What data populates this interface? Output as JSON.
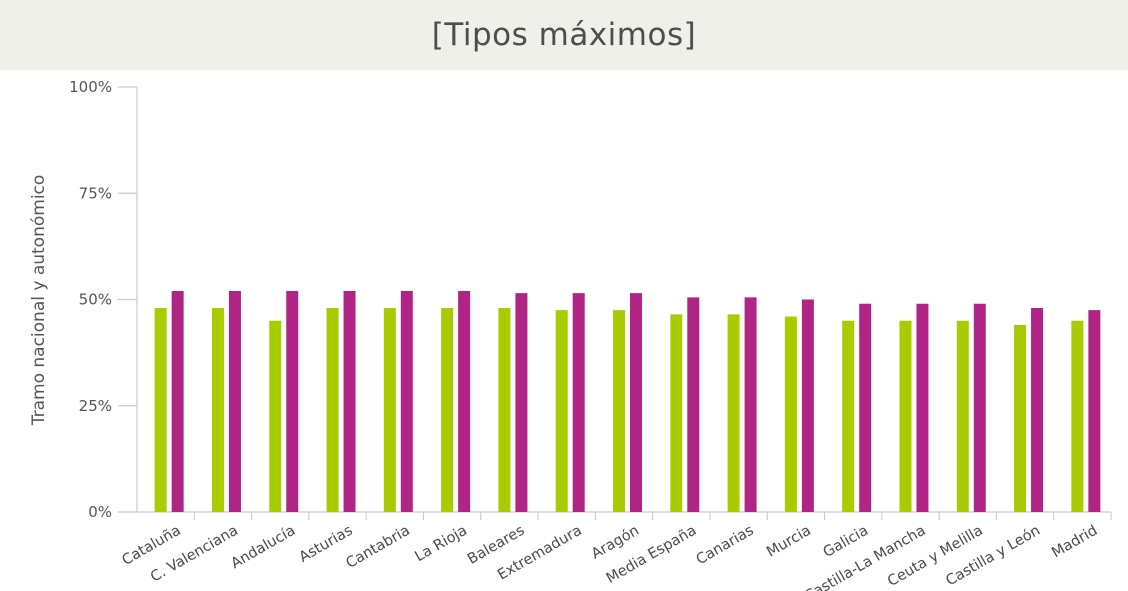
{
  "title": "[Tipos máximos]",
  "chart_data": {
    "type": "bar",
    "title": "[Tipos máximos]",
    "ylabel": "Tramo nacional y autonómico",
    "xlabel": "",
    "ylim": [
      0,
      100
    ],
    "yticks": [
      "0%",
      "25%",
      "50%",
      "75%",
      "100%"
    ],
    "grid": false,
    "legend": "none",
    "categories": [
      "Cataluña",
      "C. Valenciana",
      "Andalucía",
      "Asturias",
      "Cantabria",
      "La Rioja",
      "Baleares",
      "Extremadura",
      "Aragón",
      "Media España",
      "Canarias",
      "Murcia",
      "Galicia",
      "Castilla-La Mancha",
      "Ceuta y Melilla",
      "Castilla y León",
      "Madrid"
    ],
    "series": [
      {
        "color": "#a8cc00",
        "values": [
          48,
          48,
          45,
          48,
          48,
          48,
          48,
          47.5,
          47.5,
          46.5,
          46.5,
          46,
          45,
          45,
          45,
          44,
          45
        ]
      },
      {
        "color": "#b02486",
        "values": [
          52,
          52,
          52,
          52,
          52,
          52,
          51.5,
          51.5,
          51.5,
          50.5,
          50.5,
          50,
          49,
          49,
          49,
          48,
          47.5
        ]
      }
    ]
  }
}
